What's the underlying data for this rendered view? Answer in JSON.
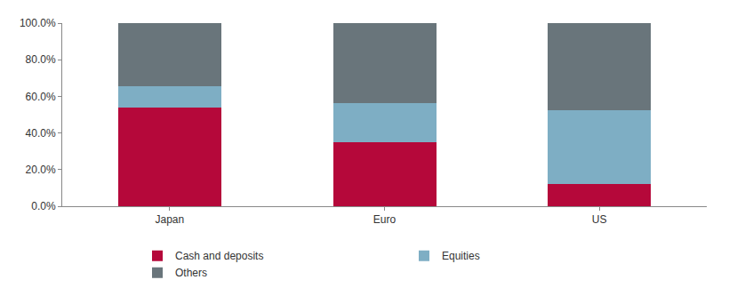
{
  "chart_data": {
    "type": "bar",
    "stacked": true,
    "categories": [
      "Japan",
      "Euro",
      "US"
    ],
    "series": [
      {
        "name": "Cash and deposits",
        "color": "#b5083a",
        "values": [
          54,
          35,
          12
        ]
      },
      {
        "name": "Equities",
        "color": "#7eaec4",
        "values": [
          11.5,
          21.5,
          40.5
        ]
      },
      {
        "name": "Others",
        "color": "#69757b",
        "values": [
          34.5,
          43.5,
          47.5
        ]
      }
    ],
    "ylim": [
      0,
      100
    ],
    "yticks": [
      {
        "value": 0,
        "label": "0.0%"
      },
      {
        "value": 20,
        "label": "20.0%"
      },
      {
        "value": 40,
        "label": "40.0%"
      },
      {
        "value": 60,
        "label": "60.0%"
      },
      {
        "value": 80,
        "label": "80.0%"
      },
      {
        "value": 100,
        "label": "100.0%"
      }
    ],
    "grid": false,
    "legend": "bottom"
  }
}
